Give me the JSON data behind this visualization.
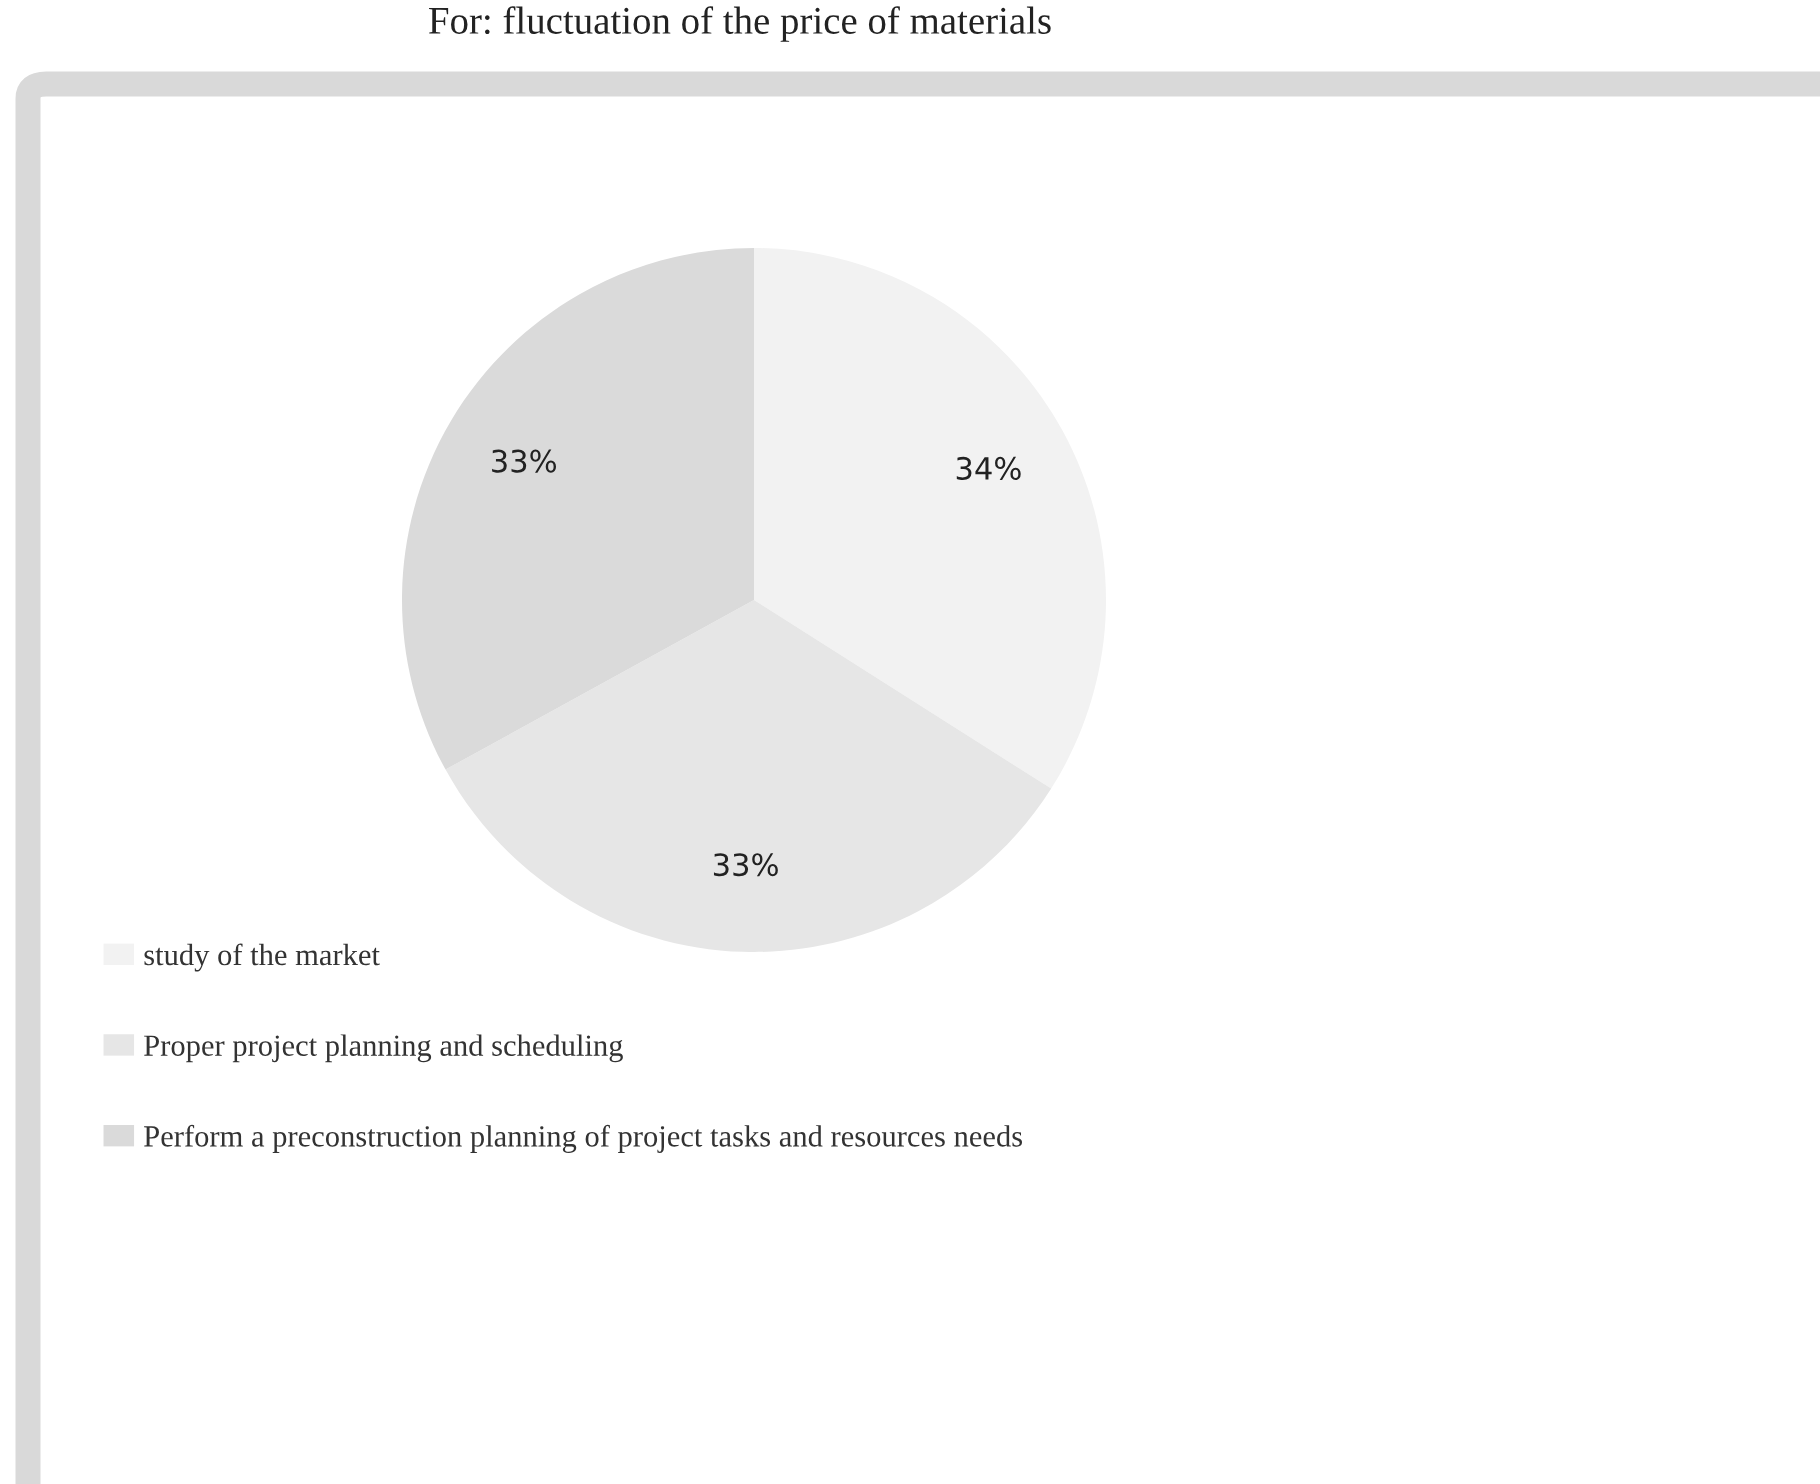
{
  "chart_data": {
    "type": "pie",
    "title": "For: fluctuation of the price of materials",
    "categories": [
      "study of the market",
      "Proper project planning and scheduling",
      "Perform a preconstruction planning of project tasks and resources needs"
    ],
    "values": [
      34,
      33,
      33
    ],
    "value_labels": [
      "34%",
      "33%",
      "33%"
    ],
    "colors": [
      "#f2f2f2",
      "#e6e6e6",
      "#dadada"
    ],
    "legend": "bottom left"
  }
}
